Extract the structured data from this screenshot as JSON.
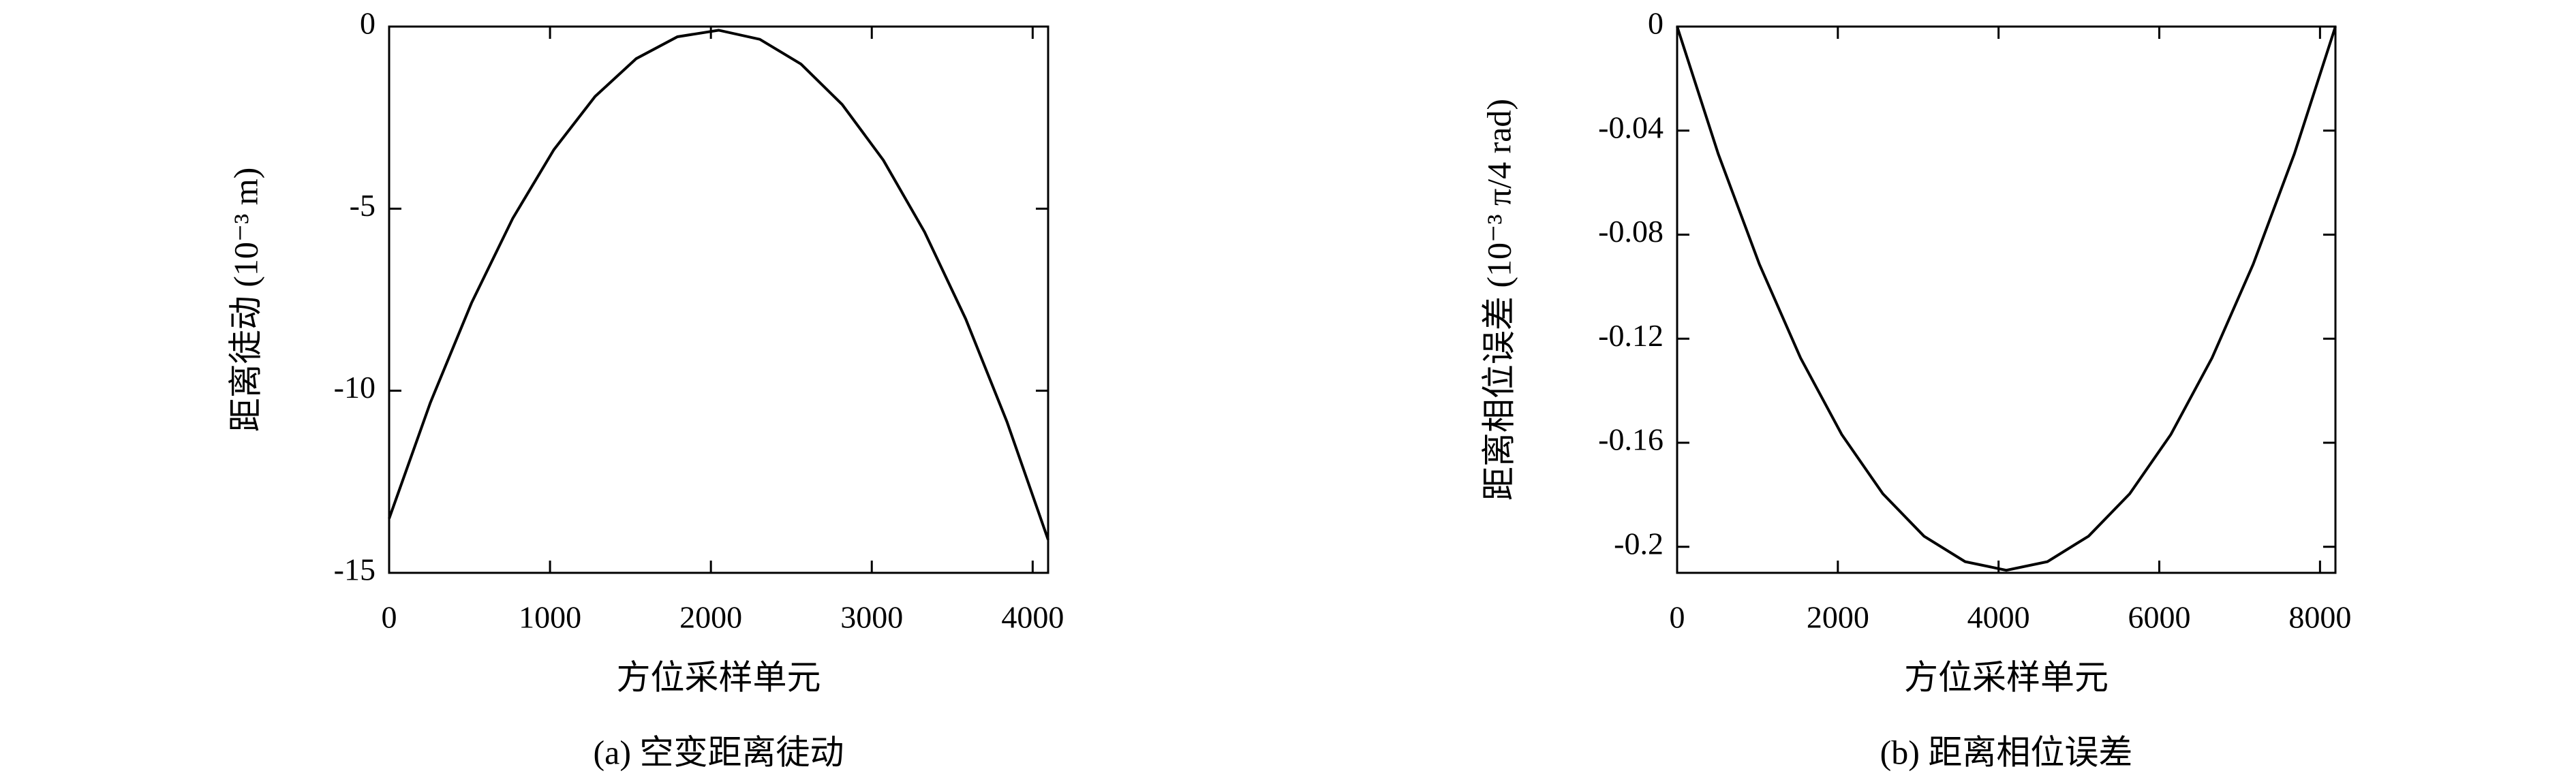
{
  "chart_data": [
    {
      "type": "line",
      "caption": "(a) 空变距离徒动",
      "x_label": "方位采样单元",
      "y_label": "距离徒动 (10⁻³ m)",
      "x": [
        0,
        256,
        512,
        768,
        1024,
        1280,
        1536,
        1792,
        2048,
        2304,
        2560,
        2816,
        3072,
        3328,
        3584,
        3840,
        4096
      ],
      "series": [
        {
          "color": "#000000",
          "values": [
            -13.51,
            -10.33,
            -7.59,
            -5.27,
            -3.38,
            -1.92,
            -0.88,
            -0.28,
            -0.1,
            -0.35,
            -1.03,
            -2.14,
            -3.67,
            -5.64,
            -8.03,
            -10.85,
            -14.09
          ]
        }
      ],
      "xlim": [
        0,
        4096
      ],
      "xticks": [
        0,
        1000,
        2000,
        3000,
        4000
      ],
      "ylim": [
        -15,
        0
      ],
      "yticks": [
        0,
        -5,
        -10,
        -15
      ]
    },
    {
      "type": "line",
      "caption": "(b) 距离相位误差",
      "x_label": "方位采样单元",
      "y_label": "距离相位误差 (10⁻³ π/4 rad)",
      "x": [
        0,
        512,
        1024,
        1536,
        2048,
        2560,
        3072,
        3584,
        4096,
        4608,
        5120,
        5632,
        6144,
        6656,
        7168,
        7680,
        8192
      ],
      "series": [
        {
          "color": "#000000",
          "values": [
            0,
            -0.049,
            -0.0914,
            -0.1274,
            -0.1568,
            -0.1796,
            -0.1959,
            -0.2057,
            -0.209,
            -0.2057,
            -0.1959,
            -0.1796,
            -0.1568,
            -0.1274,
            -0.0914,
            -0.049,
            0
          ]
        }
      ],
      "xlim": [
        0,
        8192
      ],
      "xticks": [
        0,
        2000,
        4000,
        6000,
        8000
      ],
      "ylim": [
        -0.21,
        0
      ],
      "yticks": [
        0,
        -0.04,
        -0.08,
        -0.12,
        -0.16,
        -0.2
      ]
    }
  ]
}
